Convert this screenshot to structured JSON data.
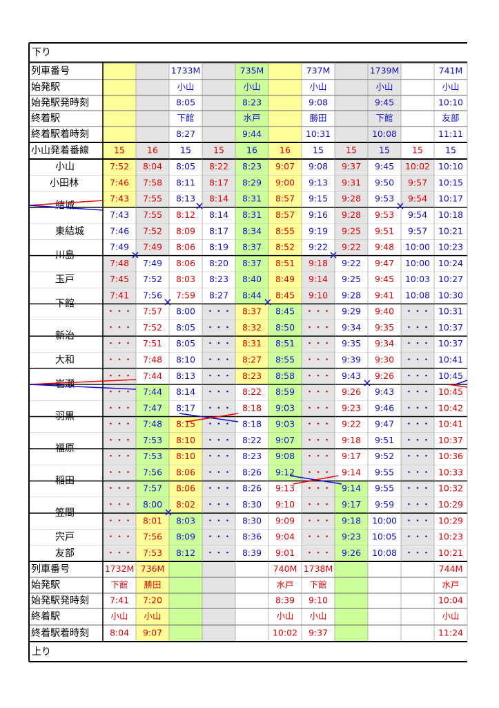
{
  "direction_down": "下り",
  "direction_up": "上り",
  "header": {
    "rows": [
      {
        "label": "列車番号",
        "cells": [
          null,
          null,
          "1733M",
          null,
          "735M",
          null,
          "737M",
          null,
          "1739M",
          null,
          "741M"
        ],
        "colors": "BBBBBBBBBBB"
      },
      {
        "label": "始発駅",
        "cells": [
          null,
          null,
          "小山",
          null,
          "小山",
          null,
          "小山",
          null,
          "小山",
          null,
          "小山"
        ],
        "colors": "BBBBBBBBBBB"
      },
      {
        "label": "始発駅発時刻",
        "cells": [
          null,
          null,
          "8:05",
          null,
          "8:23",
          null,
          "9:08",
          null,
          "9:45",
          null,
          "10:10"
        ],
        "colors": "BBBBBBBBBBB"
      },
      {
        "label": "終着駅",
        "cells": [
          null,
          null,
          "下館",
          null,
          "水戸",
          null,
          "勝田",
          null,
          "下館",
          null,
          "友部"
        ],
        "colors": "BBBBBBBBBBB"
      },
      {
        "label": "終着駅着時刻",
        "cells": [
          null,
          null,
          "8:27",
          null,
          "9:44",
          null,
          "10:31",
          null,
          "10:08",
          null,
          "11:11"
        ],
        "colors": "BBBBBBBBBBB"
      },
      {
        "label": "小山発着番線",
        "cells": [
          15,
          16,
          15,
          15,
          16,
          16,
          15,
          15,
          15,
          15,
          15
        ],
        "colors": "RRBRBRBRBRB"
      }
    ]
  },
  "stations": [
    "小山",
    "小田林",
    "結城",
    "東結城",
    "川島",
    "玉戸",
    "下館",
    "新治",
    "大和",
    "岩瀬",
    "羽黒",
    "福原",
    "稲田",
    "笠間",
    "宍戸",
    "友部"
  ],
  "times": {
    "rows": [
      {
        "cells": [
          "7:52",
          "8:04",
          "8:05",
          "8:22",
          "8:23",
          "9:07",
          "9:08",
          "9:37",
          "9:45",
          "10:02",
          "10:10"
        ],
        "colors": "RRBRBRBRBRB"
      },
      {
        "cells": [
          "7:46",
          "7:58",
          "8:11",
          "8:17",
          "8:29",
          "9:00",
          "9:13",
          "9:31",
          "9:50",
          "9:57",
          "10:15"
        ],
        "colors": "RRBRBRBRBRB"
      },
      {
        "cells": [
          "7:43",
          "7:55",
          "8:13",
          "8:14",
          "8:31",
          "8:57",
          "9:15",
          "9:28",
          "9:53",
          "9:54",
          "10:17"
        ],
        "colors": "RRBRBRBRBRB"
      },
      {
        "cells": [
          "7:43",
          "7:55",
          "8:12",
          "8:14",
          "8:31",
          "8:57",
          "9:16",
          "9:28",
          "9:53",
          "9:54",
          "10:18"
        ],
        "colors": "BRRBBRBRRBB"
      },
      {
        "cells": [
          "7:46",
          "7:52",
          "8:09",
          "8:17",
          "8:34",
          "8:55",
          "9:19",
          "9:25",
          "9:51",
          "9:57",
          "10:21"
        ],
        "colors": "BRRBBRBRRBB"
      },
      {
        "cells": [
          "7:49",
          "7:49",
          "8:06",
          "8:19",
          "8:37",
          "8:52",
          "9:22",
          "9:22",
          "9:48",
          "10:00",
          "10:23"
        ],
        "colors": "BRRBBRBRRBB"
      },
      {
        "cells": [
          "7:48",
          "7:49",
          "8:06",
          "8:20",
          "8:37",
          "8:51",
          "9:18",
          "9:22",
          "9:47",
          "10:00",
          "10:24"
        ],
        "colors": "RBRBBRRBRBB"
      },
      {
        "cells": [
          "7:45",
          "7:52",
          "8:03",
          "8:23",
          "8:40",
          "8:49",
          "9:14",
          "9:25",
          "9:45",
          "10:03",
          "10:27"
        ],
        "colors": "RBRBBRRBRBB"
      },
      {
        "cells": [
          "7:41",
          "7:56",
          "7:59",
          "8:27",
          "8:44",
          "8:45",
          "9:10",
          "9:28",
          "9:41",
          "10:08",
          "10:30"
        ],
        "colors": "RBRBBRRBRBB"
      },
      {
        "cells": [
          "・・・",
          "7:57",
          "8:00",
          "・・・",
          "8:37",
          "8:45",
          "・・・",
          "9:29",
          "9:40",
          "・・・",
          "10:31"
        ],
        "colors": "RRBBRBRBRBB"
      },
      {
        "cells": [
          "・・・",
          "7:52",
          "8:05",
          "・・・",
          "8:32",
          "8:50",
          "・・・",
          "9:34",
          "9:35",
          "・・・",
          "10:37"
        ],
        "colors": "RRBBRBRBRBB"
      },
      {
        "cells": [
          "・・・",
          "7:51",
          "8:05",
          "・・・",
          "8:31",
          "8:51",
          "・・・",
          "9:35",
          "9:34",
          "・・・",
          "10:37"
        ],
        "colors": "RRBBRBRBRBB"
      },
      {
        "cells": [
          "・・・",
          "7:48",
          "8:10",
          "・・・",
          "8:27",
          "8:55",
          "・・・",
          "9:39",
          "9:30",
          "・・・",
          "10:41"
        ],
        "colors": "RRBBRBRBRBB"
      },
      {
        "cells": [
          "・・・",
          "7:44",
          "8:13",
          "・・・",
          "8:23",
          "8:58",
          "・・・",
          "9:43",
          "9:26",
          "・・・",
          "10:45"
        ],
        "colors": "RRBBRBRBRBB"
      },
      {
        "cells": [
          "・・・",
          "7:44",
          "8:14",
          "・・・",
          "8:22",
          "8:59",
          "・・・",
          "9:26",
          "9:43",
          "・・・",
          "10:45"
        ],
        "colors": "RBBBRBRRBBR"
      },
      {
        "cells": [
          "・・・",
          "7:47",
          "8:17",
          "・・・",
          "8:18",
          "9:03",
          "・・・",
          "9:23",
          "9:46",
          "・・・",
          "10:42"
        ],
        "colors": "RBBBRBRRBBR"
      },
      {
        "cells": [
          "・・・",
          "7:48",
          "8:15",
          "・・・",
          "8:18",
          "9:03",
          "・・・",
          "9:22",
          "9:47",
          "・・・",
          "10:41"
        ],
        "colors": "RBRBBBRRBBR"
      },
      {
        "cells": [
          "・・・",
          "7:53",
          "8:10",
          "・・・",
          "8:22",
          "9:07",
          "・・・",
          "9:18",
          "9:51",
          "・・・",
          "10:37"
        ],
        "colors": "RBRBBBRRBBR"
      },
      {
        "cells": [
          "・・・",
          "7:53",
          "8:10",
          "・・・",
          "8:23",
          "9:08",
          "・・・",
          "9:17",
          "9:52",
          "・・・",
          "10:36"
        ],
        "colors": "RBRBBBRRBBR"
      },
      {
        "cells": [
          "・・・",
          "7:56",
          "8:06",
          "・・・",
          "8:26",
          "9:12",
          "・・・",
          "9:14",
          "9:55",
          "・・・",
          "10:33"
        ],
        "colors": "RBRBBBRRBBR"
      },
      {
        "cells": [
          "・・・",
          "7:57",
          "8:06",
          "・・・",
          "8:26",
          "9:13",
          "・・・",
          "9:14",
          "9:55",
          "・・・",
          "10:32"
        ],
        "colors": "RBRBBRRBBBR"
      },
      {
        "cells": [
          "・・・",
          "8:00",
          "8:02",
          "・・・",
          "8:30",
          "9:10",
          "・・・",
          "9:17",
          "9:59",
          "・・・",
          "10:29"
        ],
        "colors": "RBRBBRRBBBR"
      },
      {
        "cells": [
          "・・・",
          "8:01",
          "8:03",
          "・・・",
          "8:30",
          "9:09",
          "・・・",
          "9:18",
          "10:00",
          "・・・",
          "10:29"
        ],
        "colors": "RRBBBRRBBBR"
      },
      {
        "cells": [
          "・・・",
          "7:56",
          "8:09",
          "・・・",
          "8:36",
          "9:04",
          "・・・",
          "9:23",
          "10:05",
          "・・・",
          "10:23"
        ],
        "colors": "RRBBBRRBBBR"
      },
      {
        "cells": [
          "・・・",
          "7:53",
          "8:12",
          "・・・",
          "8:39",
          "9:01",
          "・・・",
          "9:26",
          "10:08",
          "・・・",
          "10:21"
        ],
        "colors": "RRBBBRRBBBR"
      }
    ]
  },
  "footer": {
    "rows": [
      {
        "label": "列車番号",
        "cells": [
          "1732M",
          "736M",
          null,
          null,
          null,
          "740M",
          "1738M",
          null,
          null,
          null,
          "744M"
        ],
        "colors": "RRRRRRRRRRR"
      },
      {
        "label": "始発駅",
        "cells": [
          "下館",
          "勝田",
          null,
          null,
          null,
          "水戸",
          "下館",
          null,
          null,
          null,
          "水戸"
        ],
        "colors": "RRRRRRRRRRR"
      },
      {
        "label": "始発駅発時刻",
        "cells": [
          "7:41",
          "7:20",
          null,
          null,
          null,
          "8:39",
          "9:10",
          null,
          null,
          null,
          "10:04"
        ],
        "colors": "RRRRRRRRRRR"
      },
      {
        "label": "終着駅",
        "cells": [
          "小山",
          "小山",
          null,
          null,
          null,
          "小山",
          "小山",
          null,
          null,
          null,
          "小山"
        ],
        "colors": "RRRRRRRRRRR"
      },
      {
        "label": "終着駅着時刻",
        "cells": [
          "8:04",
          "9:07",
          null,
          null,
          null,
          "10:02",
          "9:37",
          null,
          null,
          null,
          "11:24"
        ],
        "colors": "RRRRRRRRRRR"
      }
    ]
  }
}
